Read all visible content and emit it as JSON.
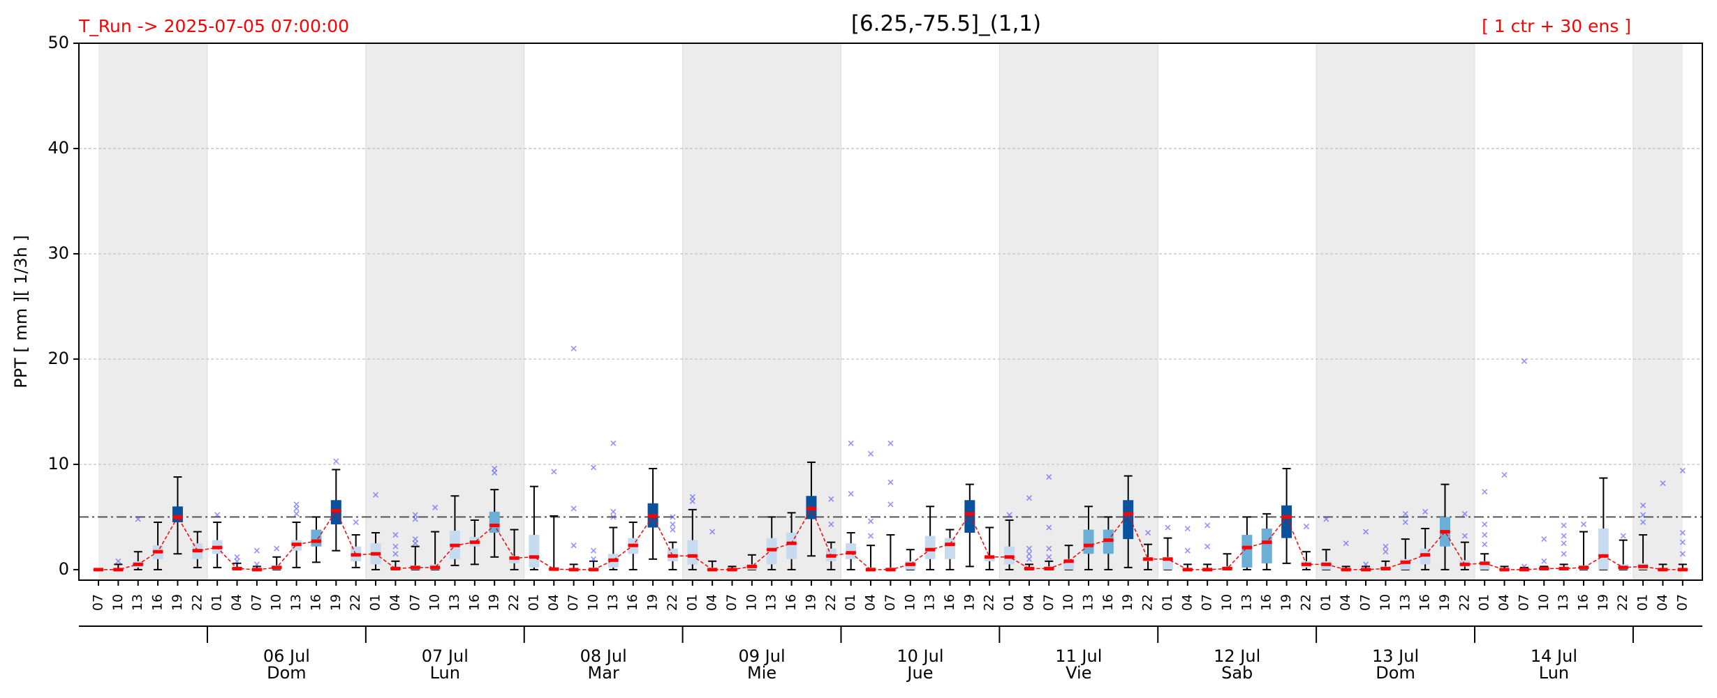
{
  "chart_data": {
    "type": "ensemble-boxplot",
    "title": "[6.25,-75.5]_(1,1)",
    "subtitle_left": "T_Run -> 2025-07-05  07:00:00",
    "subtitle_right": "[ 1 ctr + 30 ens ]",
    "y_label": "PPT  [ mm ][ 1/3h ]",
    "ylim": [
      -1,
      50
    ],
    "yticks": [
      0,
      10,
      20,
      30,
      40,
      50
    ],
    "grid": true,
    "threshold": 5,
    "categories": [
      "07",
      "10",
      "13",
      "16",
      "19",
      "22",
      "01",
      "04",
      "07",
      "10",
      "13",
      "16",
      "19",
      "22",
      "01",
      "04",
      "07",
      "10",
      "13",
      "16",
      "19",
      "22",
      "01",
      "04",
      "07",
      "10",
      "13",
      "16",
      "19",
      "22",
      "01",
      "04",
      "07",
      "10",
      "13",
      "16",
      "19",
      "22",
      "01",
      "04",
      "07",
      "10",
      "13",
      "16",
      "19",
      "22",
      "01",
      "04",
      "07",
      "10",
      "13",
      "16",
      "19",
      "22",
      "01",
      "04",
      "07",
      "10",
      "13",
      "16",
      "19",
      "22",
      "01",
      "04",
      "07",
      "10",
      "13",
      "16",
      "19",
      "22",
      "01",
      "04",
      "07",
      "10",
      "13",
      "16",
      "19",
      "22",
      "01",
      "04",
      "07"
    ],
    "day_labels": [
      null,
      "06 Jul",
      "07 Jul",
      "08 Jul",
      "09 Jul",
      "10 Jul",
      "11 Jul",
      "12 Jul",
      "13 Jul",
      "14 Jul",
      null
    ],
    "weekdays": [
      null,
      "Dom",
      "Lun",
      "Mar",
      "Mie",
      "Jue",
      "Vie",
      "Sab",
      "Dom",
      "Lun",
      null
    ],
    "shaded_days": [
      true,
      false,
      true,
      false,
      true,
      false,
      true,
      false,
      true,
      false,
      true
    ],
    "boxes": [
      [
        0,
        0,
        0,
        0,
        0
      ],
      [
        0,
        0,
        0,
        0.1,
        0.5
      ],
      [
        0,
        0.2,
        0.5,
        0.8,
        1.7
      ],
      [
        0,
        1.0,
        1.7,
        2.3,
        4.5
      ],
      [
        1.5,
        4.5,
        5.0,
        6.0,
        8.8
      ],
      [
        0.2,
        1.0,
        1.8,
        2.5,
        3.6
      ],
      [
        0.2,
        1.5,
        2.1,
        2.8,
        4.5
      ],
      [
        0,
        0,
        0.1,
        0.2,
        0.6
      ],
      [
        0,
        0,
        0,
        0.1,
        0.3
      ],
      [
        0,
        0,
        0.2,
        0.4,
        1.2
      ],
      [
        0.2,
        1.8,
        2.4,
        2.8,
        4.5
      ],
      [
        0.7,
        2.2,
        2.7,
        3.8,
        5.0
      ],
      [
        1.8,
        4.3,
        5.6,
        6.6,
        9.5
      ],
      [
        0.2,
        0.8,
        1.4,
        2.2,
        3.3
      ],
      [
        0,
        0.5,
        1.5,
        2.5,
        3.5
      ],
      [
        0,
        0,
        0.1,
        0.2,
        0.8
      ],
      [
        0,
        0,
        0.2,
        0.4,
        2.2
      ],
      [
        0,
        0,
        0.2,
        0.5,
        3.6
      ],
      [
        0.4,
        1.0,
        2.3,
        3.7,
        7.0
      ],
      [
        0.5,
        2.2,
        2.6,
        3.1,
        4.7
      ],
      [
        1.2,
        3.5,
        4.2,
        5.5,
        7.6
      ],
      [
        0,
        0.6,
        1.1,
        1.3,
        3.8
      ],
      [
        0,
        0.2,
        1.2,
        3.3,
        7.9
      ],
      [
        0,
        0,
        0.05,
        0.2,
        5.1
      ],
      [
        0,
        0,
        0,
        0.1,
        0.5
      ],
      [
        0,
        0,
        0,
        0.2,
        0.8
      ],
      [
        0,
        0.2,
        0.9,
        1.5,
        4.0
      ],
      [
        0,
        1.5,
        2.3,
        3.0,
        4.5
      ],
      [
        1.0,
        4.0,
        5.1,
        6.3,
        9.6
      ],
      [
        0,
        0.8,
        1.3,
        2.0,
        2.6
      ],
      [
        0,
        0.5,
        1.3,
        2.8,
        5.7
      ],
      [
        0,
        0,
        0,
        0.2,
        0.8
      ],
      [
        0,
        0,
        0,
        0.1,
        0.3
      ],
      [
        0,
        0,
        0.3,
        0.5,
        1.4
      ],
      [
        0,
        0.5,
        1.9,
        3.0,
        5.0
      ],
      [
        0,
        1.0,
        2.5,
        3.5,
        5.4
      ],
      [
        1.3,
        4.8,
        5.8,
        7.0,
        10.2
      ],
      [
        0,
        0.8,
        1.3,
        2.0,
        2.6
      ],
      [
        0,
        1.0,
        1.6,
        2.5,
        3.5
      ],
      [
        0,
        0,
        0,
        0.2,
        2.3
      ],
      [
        0,
        0,
        0,
        0.2,
        3.3
      ],
      [
        0,
        0,
        0.5,
        0.8,
        1.9
      ],
      [
        0,
        1.0,
        1.9,
        3.2,
        6.0
      ],
      [
        0,
        1.0,
        2.4,
        3.0,
        3.8
      ],
      [
        0.3,
        3.5,
        5.3,
        6.6,
        8.1
      ],
      [
        0,
        0.8,
        1.2,
        1.3,
        4.0
      ],
      [
        0,
        0.5,
        1.2,
        2.2,
        4.7
      ],
      [
        0,
        0,
        0.1,
        0.2,
        0.5
      ],
      [
        0,
        0,
        0.1,
        0.3,
        0.8
      ],
      [
        0,
        0,
        0.8,
        1.0,
        2.3
      ],
      [
        0,
        1.5,
        2.3,
        3.8,
        6.0
      ],
      [
        0,
        1.5,
        2.8,
        3.8,
        5.0
      ],
      [
        0.2,
        2.9,
        5.3,
        6.6,
        8.9
      ],
      [
        0,
        0.8,
        1.0,
        1.2,
        2.4
      ],
      [
        0,
        0,
        1.0,
        1.2,
        3.0
      ],
      [
        0,
        0,
        0,
        0.1,
        0.5
      ],
      [
        0,
        0,
        0,
        0.1,
        0.5
      ],
      [
        0,
        0,
        0.1,
        0.3,
        1.5
      ],
      [
        0,
        0.2,
        2.1,
        3.3,
        5.0
      ],
      [
        0,
        0.6,
        2.6,
        3.9,
        5.3
      ],
      [
        0.6,
        3.0,
        5.0,
        6.1,
        9.6
      ],
      [
        0,
        0.2,
        0.5,
        0.8,
        1.7
      ],
      [
        0,
        0,
        0.5,
        0.8,
        1.9
      ],
      [
        0,
        0,
        0,
        0.1,
        0.3
      ],
      [
        0,
        0,
        0,
        0.1,
        0.3
      ],
      [
        0,
        0,
        0.1,
        0.3,
        0.8
      ],
      [
        0,
        0,
        0.7,
        1.0,
        2.9
      ],
      [
        0,
        0.5,
        1.4,
        2.0,
        3.9
      ],
      [
        0,
        2.2,
        3.6,
        5.0,
        8.1
      ],
      [
        0,
        0.3,
        0.5,
        0.9,
        2.6
      ],
      [
        0,
        0,
        0.6,
        0.8,
        1.5
      ],
      [
        0,
        0,
        0,
        0.1,
        0.3
      ],
      [
        0,
        0,
        0,
        0.1,
        0.2
      ],
      [
        0,
        0,
        0.1,
        0.2,
        0.3
      ],
      [
        0,
        0,
        0.1,
        0.2,
        0.5
      ],
      [
        0,
        0,
        0.2,
        0.4,
        3.6
      ],
      [
        0,
        0,
        1.3,
        3.9,
        8.7
      ],
      [
        0,
        0,
        0.2,
        0.5,
        2.8
      ],
      [
        0,
        0,
        0.3,
        0.6,
        3.3
      ],
      [
        0,
        0,
        0,
        0.1,
        0.5
      ],
      [
        0,
        0,
        0,
        0.1,
        0.5
      ]
    ],
    "box_colors": [
      "#c6dbef",
      "#c6dbef",
      "#c6dbef",
      "#c6dbef",
      "#08519c",
      "#c6dbef",
      "#c6dbef",
      "#c6dbef",
      "#c6dbef",
      "#c6dbef",
      "#c6dbef",
      "#6baed6",
      "#08519c",
      "#c6dbef",
      "#c6dbef",
      "#c6dbef",
      "#c6dbef",
      "#c6dbef",
      "#c6dbef",
      "#c6dbef",
      "#6baed6",
      "#c6dbef",
      "#c6dbef",
      "#c6dbef",
      "#c6dbef",
      "#c6dbef",
      "#c6dbef",
      "#c6dbef",
      "#08519c",
      "#c6dbef",
      "#c6dbef",
      "#c6dbef",
      "#c6dbef",
      "#c6dbef",
      "#c6dbef",
      "#c6dbef",
      "#08519c",
      "#c6dbef",
      "#c6dbef",
      "#c6dbef",
      "#c6dbef",
      "#c6dbef",
      "#c6dbef",
      "#c6dbef",
      "#08519c",
      "#c6dbef",
      "#c6dbef",
      "#c6dbef",
      "#c6dbef",
      "#c6dbef",
      "#6baed6",
      "#6baed6",
      "#08519c",
      "#c6dbef",
      "#c6dbef",
      "#c6dbef",
      "#c6dbef",
      "#c6dbef",
      "#6baed6",
      "#6baed6",
      "#08519c",
      "#c6dbef",
      "#c6dbef",
      "#c6dbef",
      "#c6dbef",
      "#c6dbef",
      "#c6dbef",
      "#c6dbef",
      "#6baed6",
      "#c6dbef",
      "#c6dbef",
      "#c6dbef",
      "#c6dbef",
      "#c6dbef",
      "#c6dbef",
      "#c6dbef",
      "#c6dbef",
      "#c6dbef",
      "#c6dbef",
      "#c6dbef",
      "#c6dbef"
    ],
    "outliers": [
      [],
      [
        0.8
      ],
      [
        4.8
      ],
      [],
      [],
      [],
      [
        5.2
      ],
      [
        0.8,
        1.2
      ],
      [
        0.5,
        1.8
      ],
      [
        2.0
      ],
      [
        5.3,
        5.8,
        6.2
      ],
      [],
      [
        10.3
      ],
      [
        4.5
      ],
      [
        7.1
      ],
      [
        1.5,
        2.2,
        3.3
      ],
      [
        2.5,
        2.9,
        4.8,
        5.2
      ],
      [
        5.9
      ],
      [],
      [],
      [
        9.2,
        9.6
      ],
      [],
      [],
      [
        9.3
      ],
      [
        2.3,
        5.8,
        21.0
      ],
      [
        1.0,
        1.8,
        9.7
      ],
      [
        5.0,
        5.5,
        12.0
      ],
      [],
      [],
      [
        3.8,
        4.3,
        5.0
      ],
      [
        6.5,
        6.9
      ],
      [
        3.6
      ],
      [],
      [],
      [],
      [],
      [],
      [
        4.3,
        6.7
      ],
      [
        7.2,
        12.0
      ],
      [
        3.2,
        4.6,
        11.0
      ],
      [
        6.2,
        8.3,
        12.0
      ],
      [],
      [],
      [],
      [],
      [],
      [
        5.2
      ],
      [
        1.0,
        1.5,
        2.0,
        6.8
      ],
      [
        1.2,
        2.0,
        4.0,
        8.8
      ],
      [],
      [],
      [],
      [],
      [
        3.5
      ],
      [
        4.0
      ],
      [
        1.8,
        3.9
      ],
      [
        2.2,
        4.2
      ],
      [],
      [],
      [],
      [],
      [
        4.1
      ],
      [
        4.8
      ],
      [
        2.5
      ],
      [
        0.5,
        3.6
      ],
      [
        1.7,
        2.2
      ],
      [
        4.5,
        5.3
      ],
      [
        5.5
      ],
      [],
      [
        3.2,
        5.3
      ],
      [
        2.4,
        3.3,
        4.3,
        7.4
      ],
      [
        9.0
      ],
      [
        0.3,
        19.8
      ],
      [
        0.8,
        2.9
      ],
      [
        1.5,
        2.5,
        3.2,
        4.2
      ],
      [
        4.3
      ],
      [],
      [
        3.2
      ],
      [
        4.5,
        5.2,
        6.1
      ],
      [
        8.2
      ],
      [
        1.5,
        2.6,
        3.5,
        9.4
      ]
    ],
    "outlier_color": "#4a4aff",
    "control": {
      "color": "#ff0000",
      "values": [
        0,
        0,
        0.5,
        1.7,
        5.0,
        1.8,
        2.1,
        0.1,
        0,
        0.2,
        2.4,
        2.7,
        5.6,
        1.4,
        1.5,
        0.1,
        0.2,
        0.2,
        2.3,
        2.6,
        4.2,
        1.1,
        1.2,
        0.05,
        0,
        0,
        0.9,
        2.3,
        5.1,
        1.3,
        1.3,
        0,
        0,
        0.3,
        1.9,
        2.5,
        5.8,
        1.3,
        1.6,
        0,
        0,
        0.5,
        1.9,
        2.4,
        5.3,
        1.2,
        1.2,
        0.1,
        0.1,
        0.8,
        2.3,
        2.8,
        5.3,
        1.0,
        1.0,
        0,
        0,
        0.1,
        2.1,
        2.6,
        5.0,
        0.5,
        0.5,
        0,
        0,
        0.1,
        0.7,
        1.4,
        3.6,
        0.5,
        0.6,
        0,
        0,
        0.1,
        0.1,
        0.2,
        1.3,
        0.2,
        0.3,
        0,
        0
      ]
    }
  }
}
